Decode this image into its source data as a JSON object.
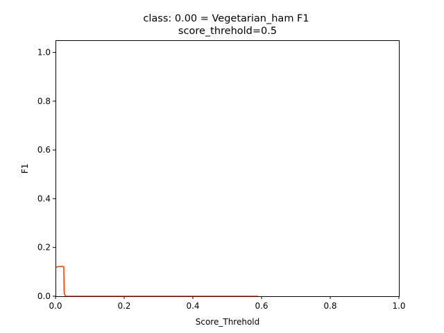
{
  "chart_data": {
    "type": "line",
    "title": "class: 0.00 = Vegetarian_ham F1",
    "subtitle": "score_threhold=0.5",
    "xlabel": "Score_Threhold",
    "ylabel": "F1",
    "xlim": [
      0.0,
      1.0
    ],
    "ylim": [
      0.0,
      1.05
    ],
    "xticks": [
      0.0,
      0.2,
      0.4,
      0.6,
      0.8,
      1.0
    ],
    "xtick_labels": [
      "0.0",
      "0.2",
      "0.4",
      "0.6",
      "0.8",
      "1.0"
    ],
    "yticks": [
      0.0,
      0.2,
      0.4,
      0.6,
      0.8,
      1.0
    ],
    "ytick_labels": [
      "0.0",
      "0.2",
      "0.4",
      "0.6",
      "0.8",
      "1.0"
    ],
    "grid": false,
    "series": [
      {
        "name": "F1",
        "color": "#ff4500",
        "x": [
          0.002,
          0.005,
          0.01,
          0.015,
          0.02,
          0.024,
          0.025,
          0.026,
          0.028,
          0.03,
          0.04,
          0.1,
          0.2,
          0.3,
          0.4,
          0.5,
          0.59
        ],
        "y": [
          0.118,
          0.121,
          0.122,
          0.122,
          0.122,
          0.122,
          0.02,
          0.01,
          0.004,
          0.0,
          0.0,
          0.0,
          0.0,
          0.0,
          0.0,
          0.0,
          0.0
        ]
      }
    ]
  }
}
